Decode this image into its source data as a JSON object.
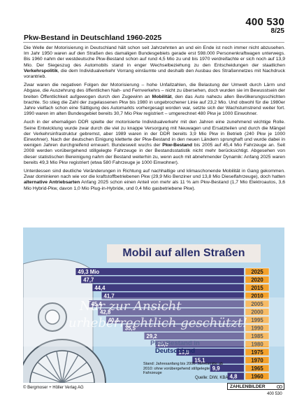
{
  "header": {
    "code_number": "400 530",
    "code_sub": "8/25",
    "title": "Pkw-Bestand in Deutschland 1960-2025"
  },
  "article": {
    "paragraphs": [
      [
        {
          "t": "Die Welle der Motorisierung in Deutschland hält schon seit Jahrzehnten an und ein Ende ist noch immer nicht abzusehen. Im Jahr 1950 waren auf den Straßen des damaligen Bundesgebiets gerade erst 598.000 Personenkraftwagen unterwegs. Bis 1960 nahm der westdeutsche Pkw-Bestand schon auf rund 4,5 Mio zu und bis 1970 verdreifachte er sich noch auf 13,9 Mio. Der Siegeszug des Automobils stand in enger Wechselbeziehung zu den Entscheidungen der staatlichen "
        },
        {
          "t": "Verkehrspolitik",
          "b": true
        },
        {
          "t": ", die dem Individualverkehr Vorrang einräumte und deshalb den Ausbau des Straßennetzes mit Nachdruck vorantrieb."
        }
      ],
      [
        {
          "t": "Zwar waren die negativen Folgen der Motorisierung – hohe Unfallzahlen, die Belastung der Umwelt durch Lärm und Abgase, die Auszehrung des öffentlichen Nah- und Fernverkehrs – nicht zu übersehen, doch wurden sie im Bewusstsein der breiten Öffentlichkeit aufgewogen durch den Zugewinn an "
        },
        {
          "t": "Mobilität",
          "b": true
        },
        {
          "t": ", den das Auto nahezu allen Bevölkerungsschichten brachte. So stieg die Zahl der zugelassenen Pkw bis 1980 in ungebrochener Linie auf 23,2 Mio. Und obwohl für die 1980er Jahre vielfach schon eine Sättigung des Automarkts vorhergesagt worden war, setzte sich der Wachstumstrend weiter fort. 1990 waren im alten Bundesgebiet bereits 30,7 Mio Pkw registriert – umgerechnet 480 Pkw je 1000 Einwohner."
        }
      ],
      [
        {
          "t": "Auch in der ehemaligen DDR spielte der motorisierte Individualverkehr mit den Jahren eine zunehmend wichtige Rolle. Seine Entwicklung wurde zwar durch die viel zu knappe Versorgung mit Neuwagen und Ersatzteilen und durch die Mängel der Verkehrsinfrastruktur gebremst, aber 1989 waren in der DDR bereits 3,9 Mio Pkw in Betrieb (240 Pkw je 1000 Einwohner). Nach der deutschen Einigung kletterte der Pkw-Bestand in den neuen Ländern sprunghaft und wurde dabei in wenigen Jahren durchgreifend erneuert. Bundesweit wuchs der "
        },
        {
          "t": "Pkw-Bestand",
          "b": true
        },
        {
          "t": " bis 2005 auf 45,4 Mio Fahrzeuge an. Seit 2008 werden vorübergehend stillgelegte Fahrzeuge in der Bestandsstatistik nicht mehr berücksichtigt. Abgesehen von dieser statistischen Bereinigung nahm der Bestand weiterhin zu, wenn auch mit abnehmender Dynamik: Anfang 2025 waren bereits 49,3 Mio Pkw registriert (etwa 580 Fahrzeuge je 1000 Einwohner)."
        }
      ],
      [
        {
          "t": "Unterdessen sind deutliche Veränderungen in Richtung auf nachhaltige und klimaschonende Mobilität in Gang gekommen. Zwar dominieren nach wie vor die kraftstoffbetriebenen Pkw (29,9 Mio Benziner und 13,8 Mio Dieselfahrzeuge), doch hatten "
        },
        {
          "t": "alternative Antriebsarten",
          "b": true
        },
        {
          "t": " Anfang 2025 schon einen Anteil von mehr als 11 % am Pkw-Bestand (1,7 Mio Elektroautos, 3,6 Mio Hybrid-Pkw, davon 1,0 Mio Plug-in-Hybride, und 0,4 Mio gasbetriebene Pkw)."
        }
      ]
    ]
  },
  "chart_data": {
    "type": "bar",
    "orientation": "horizontal",
    "title": "Mobil auf allen Straßen",
    "subtitle": "Pkw-Bestand in Deutschland",
    "unit_label": "Mio",
    "categories": [
      "2025",
      "2020",
      "2015",
      "2010",
      "2005",
      "2000",
      "1995",
      "1990",
      "1985",
      "1980",
      "1975",
      "1970",
      "1965",
      "1960"
    ],
    "values": [
      49.3,
      47.7,
      44.4,
      41.7,
      45.4,
      42.8,
      40.4,
      35.5,
      29.2,
      25.9,
      19.8,
      15.1,
      9.9,
      4.8
    ],
    "value_labels": [
      "49,3 Mio",
      "47,7",
      "44,4",
      "41,7",
      "45,4",
      "42,8",
      "40,4",
      "35,5",
      "29,2",
      "25,9",
      "19,8",
      "15,1",
      "9,9",
      "4,8"
    ],
    "xlim": [
      0,
      50
    ],
    "note": "Stand: Jahresanfang bis 2000: Jahresmitte ab 2010: ohne vorübergehend stillgelegte Fahrzeuge",
    "source": "Quelle: DIW, KBA",
    "colors": {
      "bar": "#3f3a7e",
      "year_bg": "#f4a12a",
      "chart_bg": "#b9d9ec",
      "title_bg": "#efeae6",
      "title_text": "#2a2f6b"
    }
  },
  "footer": {
    "publisher": "© Bergmoser + Höller Verlag AG",
    "badge": "ZAHLENBILDER",
    "number": "400 530"
  },
  "watermark": {
    "line1": "Nur zur Ansicht",
    "line2": "urheberrechtlich geschützt!"
  }
}
